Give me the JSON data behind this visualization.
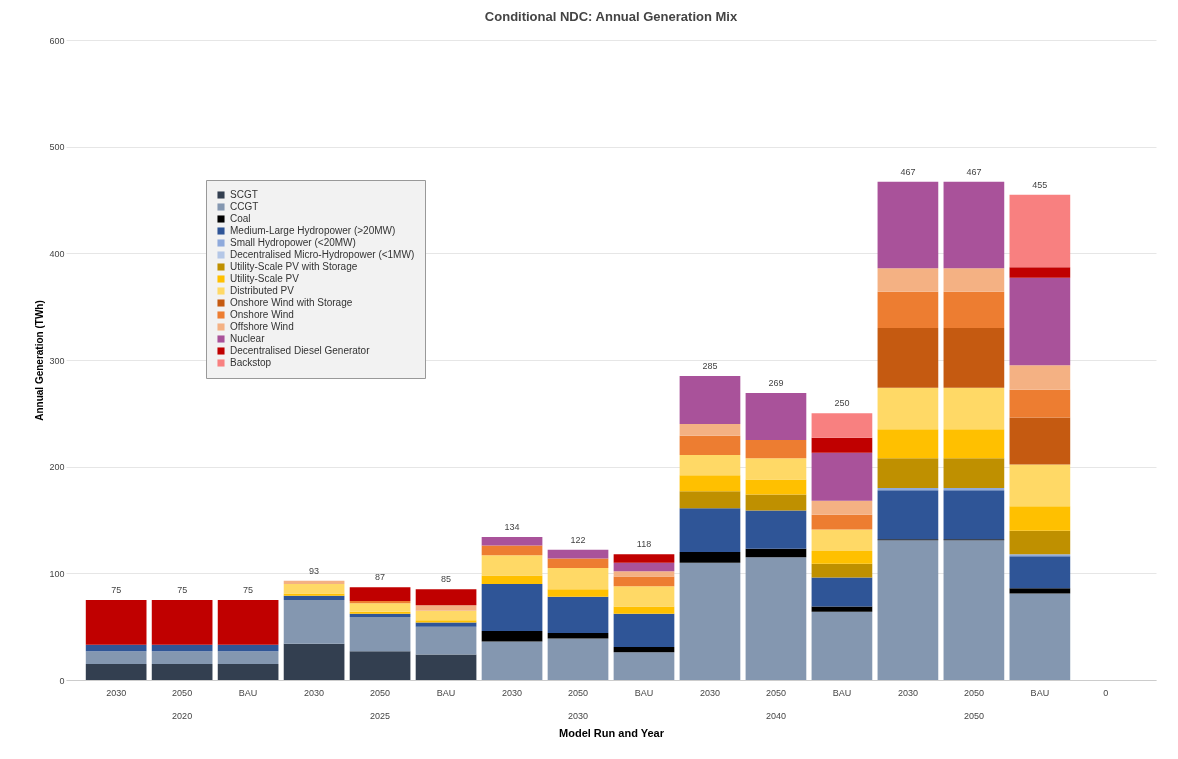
{
  "chart_data": {
    "type": "bar",
    "stacked": true,
    "title": "Conditional NDC: Annual Generation Mix",
    "xlabel": "Model Run and Year",
    "ylabel": "Annual Generation (TWh)",
    "categories": [
      "2030",
      "2050",
      "BAU",
      "2030",
      "2050",
      "BAU",
      "2030",
      "2050",
      "BAU",
      "2030",
      "2050",
      "BAU",
      "2030",
      "2050",
      "BAU",
      "0"
    ],
    "annotations": [
      "2020",
      "2025",
      "2030",
      "2040",
      "2050"
    ],
    "ylim": [
      0,
      600
    ],
    "yticks": [
      0,
      100,
      200,
      300,
      400,
      500,
      600
    ],
    "grid": "y",
    "legend": "top left",
    "totals": [
      "75",
      "75",
      "75",
      "93",
      "87",
      "85",
      "134",
      "122",
      "118",
      "285",
      "269",
      "250",
      "467",
      "467",
      "455",
      null
    ],
    "series": [
      {
        "name": "SCGT",
        "color": "#333f50",
        "values": [
          15,
          15,
          15,
          34,
          27,
          24,
          null,
          null,
          null,
          null,
          null,
          null,
          null,
          null,
          null,
          null
        ]
      },
      {
        "name": "CCGT",
        "color": "#8497b0",
        "values": [
          12,
          12,
          12,
          41,
          32,
          26,
          36,
          39,
          26,
          110,
          115,
          64,
          131,
          131,
          81,
          null
        ]
      },
      {
        "name": "Coal",
        "color": "#000000",
        "values": [
          null,
          null,
          null,
          null,
          null,
          null,
          10,
          5,
          5,
          10,
          8,
          5,
          1,
          1,
          5,
          null
        ]
      },
      {
        "name": "Medium-Large Hydropower (>20MW)",
        "color": "#2f5597",
        "values": [
          6,
          6,
          6,
          4,
          3,
          4,
          44,
          34,
          31,
          41,
          36,
          27,
          46,
          46,
          30,
          null
        ]
      },
      {
        "name": "Small Hydropower (<20MW)",
        "color": "#8faadc",
        "values": [
          null,
          null,
          null,
          null,
          null,
          null,
          null,
          null,
          null,
          null,
          null,
          null,
          2,
          2,
          2,
          null
        ]
      },
      {
        "name": "Decentralised Micro-Hydropower (<1MW)",
        "color": "#b4c7e7",
        "values": [
          null,
          null,
          null,
          null,
          null,
          null,
          null,
          null,
          null,
          null,
          null,
          null,
          null,
          null,
          null,
          null
        ]
      },
      {
        "name": "Utility-Scale PV with Storage",
        "color": "#bf9000",
        "values": [
          null,
          null,
          null,
          null,
          null,
          null,
          null,
          null,
          null,
          16,
          15,
          13,
          28,
          28,
          22,
          null
        ]
      },
      {
        "name": "Utility-Scale PV",
        "color": "#ffc000",
        "values": [
          null,
          null,
          null,
          2,
          2,
          2,
          8,
          7,
          7,
          15,
          14,
          12,
          27,
          27,
          23,
          null
        ]
      },
      {
        "name": "Distributed PV",
        "color": "#ffd966",
        "values": [
          null,
          null,
          null,
          9,
          8,
          9,
          19,
          20,
          19,
          19,
          20,
          20,
          39,
          39,
          39,
          null
        ]
      },
      {
        "name": "Onshore Wind with Storage",
        "color": "#c55a11",
        "values": [
          null,
          null,
          null,
          null,
          null,
          null,
          null,
          null,
          null,
          null,
          null,
          null,
          56,
          56,
          44,
          null
        ]
      },
      {
        "name": "Onshore Wind",
        "color": "#ed7d31",
        "values": [
          null,
          null,
          null,
          null,
          2,
          null,
          9,
          9,
          9,
          18,
          17,
          14,
          34,
          34,
          26,
          null
        ]
      },
      {
        "name": "Offshore Wind",
        "color": "#f4b183",
        "values": [
          null,
          null,
          null,
          3,
          null,
          5,
          null,
          null,
          5,
          11,
          null,
          13,
          22,
          22,
          23,
          null
        ]
      },
      {
        "name": "Nuclear",
        "color": "#a9529a",
        "values": [
          null,
          null,
          null,
          null,
          null,
          null,
          8,
          8,
          8,
          45,
          44,
          45,
          81,
          81,
          82,
          null
        ]
      },
      {
        "name": "Decentralised Diesel Generator",
        "color": "#c00000",
        "values": [
          42,
          42,
          42,
          null,
          13,
          15,
          null,
          null,
          8,
          null,
          null,
          14,
          null,
          null,
          10,
          null
        ]
      },
      {
        "name": "Backstop",
        "color": "#f88080",
        "values": [
          null,
          null,
          null,
          null,
          null,
          null,
          null,
          null,
          null,
          null,
          null,
          23,
          null,
          null,
          68,
          null
        ]
      }
    ]
  }
}
